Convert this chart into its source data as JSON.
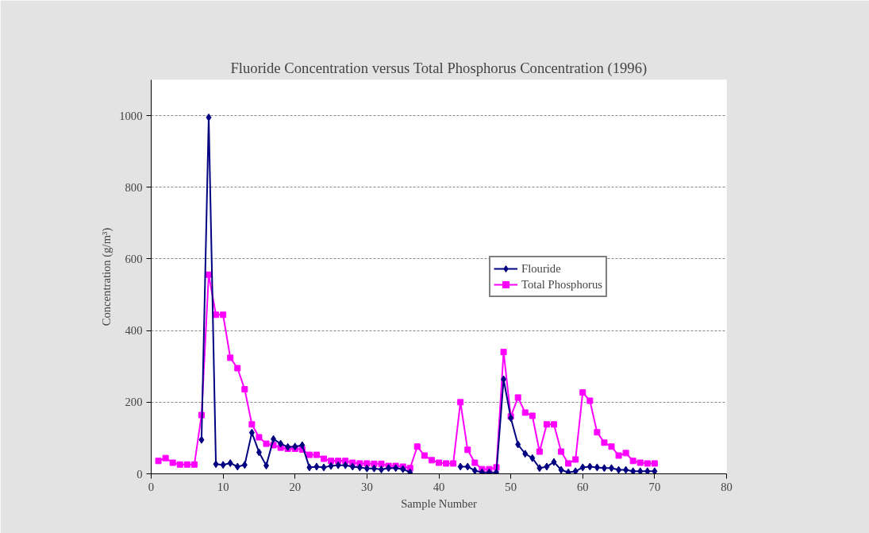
{
  "chart_data": {
    "type": "line",
    "title": "Fluoride Concentration versus Total Phosphorus Concentration (1996)",
    "xlabel": "Sample Number",
    "ylabel": "Concentration (g/m³)",
    "x": [
      1,
      2,
      3,
      4,
      5,
      6,
      7,
      8,
      9,
      10,
      11,
      12,
      13,
      14,
      15,
      16,
      17,
      18,
      19,
      20,
      21,
      22,
      23,
      24,
      25,
      26,
      27,
      28,
      29,
      30,
      31,
      32,
      33,
      34,
      35,
      36,
      37,
      38,
      39,
      40,
      41,
      42,
      43,
      44,
      45,
      46,
      47,
      48,
      49,
      50,
      51,
      52,
      53,
      54,
      55,
      56,
      57,
      58,
      59,
      60,
      61,
      62,
      63,
      64,
      65,
      66,
      67,
      68,
      69,
      70
    ],
    "series": [
      {
        "name": "Flouride",
        "color": "#000080",
        "marker": "diamond",
        "values": [
          null,
          null,
          null,
          null,
          null,
          null,
          95,
          995,
          27,
          25,
          30,
          20,
          25,
          115,
          60,
          23,
          97,
          84,
          75,
          76,
          80,
          18,
          20,
          18,
          22,
          24,
          24,
          20,
          18,
          15,
          15,
          12,
          16,
          16,
          13,
          4,
          null,
          null,
          null,
          null,
          null,
          null,
          20,
          20,
          9,
          4,
          4,
          4,
          264,
          156,
          82,
          56,
          44,
          16,
          20,
          33,
          11,
          4,
          7,
          18,
          20,
          18,
          16,
          16,
          11,
          11,
          7,
          7,
          7,
          7
        ]
      },
      {
        "name": "Total Phosphorus",
        "color": "#ff00ff",
        "marker": "square",
        "values": [
          36,
          44,
          31,
          26,
          26,
          26,
          164,
          556,
          444,
          444,
          324,
          295,
          236,
          138,
          102,
          84,
          80,
          73,
          70,
          70,
          68,
          53,
          53,
          42,
          36,
          36,
          36,
          31,
          29,
          29,
          28,
          28,
          22,
          22,
          20,
          16,
          76,
          51,
          38,
          31,
          29,
          29,
          200,
          67,
          31,
          13,
          13,
          18,
          340,
          160,
          213,
          171,
          162,
          62,
          138,
          138,
          62,
          29,
          40,
          227,
          204,
          116,
          87,
          76,
          51,
          58,
          36,
          31,
          29,
          29
        ]
      }
    ],
    "xlim": [
      0,
      80
    ],
    "xticks": [
      0,
      10,
      20,
      30,
      40,
      50,
      60,
      70,
      80
    ],
    "ylim": [
      0,
      1100
    ],
    "yticks": [
      0,
      200,
      400,
      600,
      800,
      1000
    ],
    "grid": "y",
    "legend": "right"
  }
}
